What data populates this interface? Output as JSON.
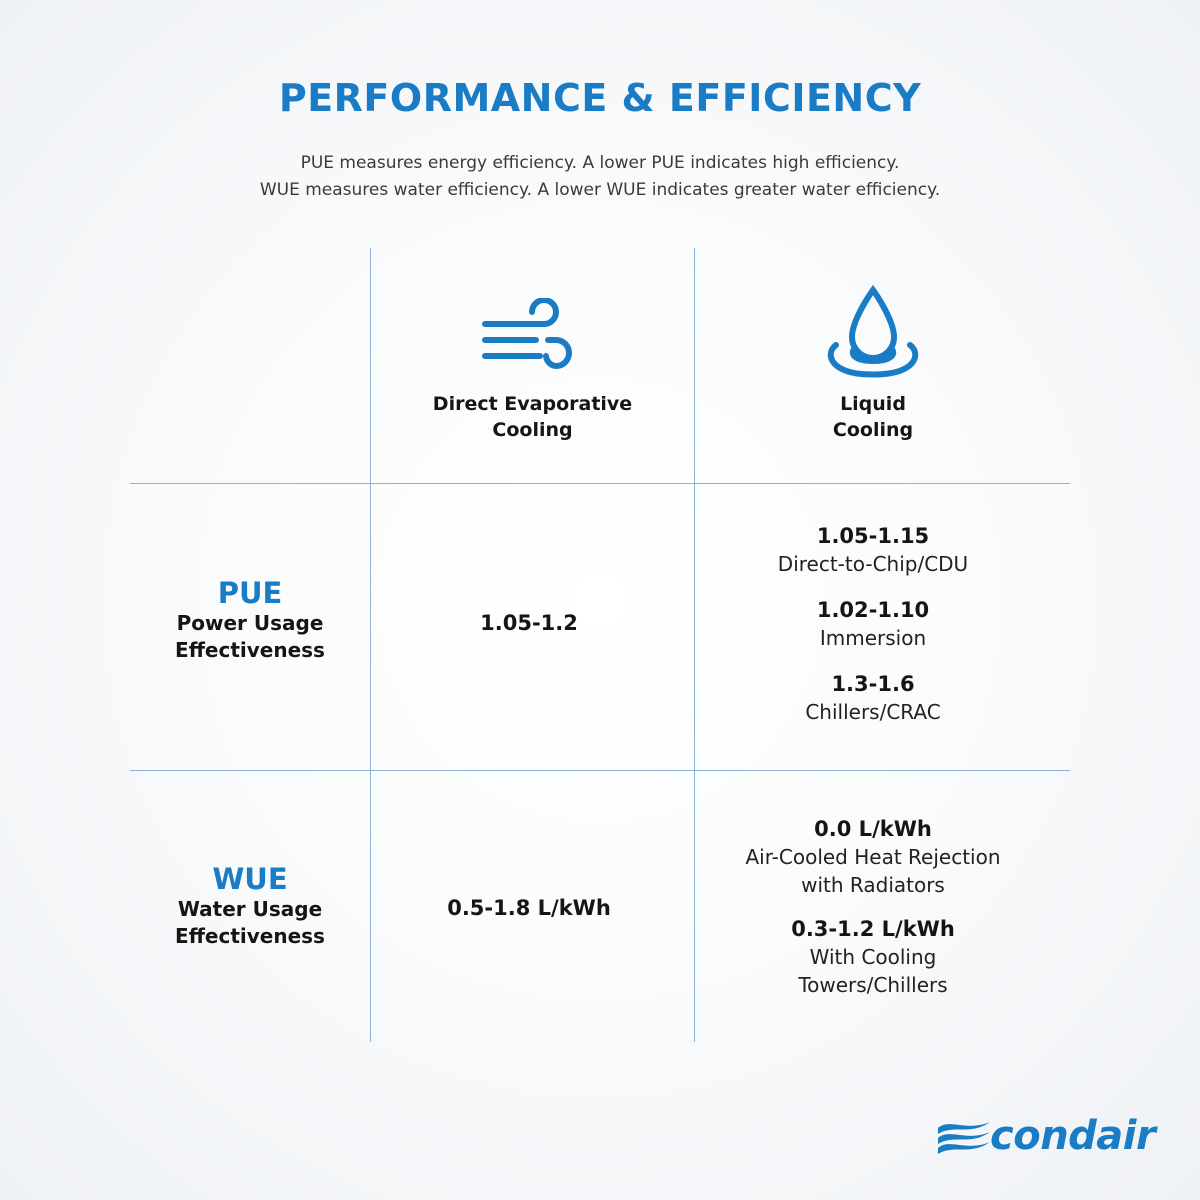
{
  "header": {
    "title": "PERFORMANCE & EFFICIENCY",
    "subtitle_lines": [
      "PUE measures energy efficiency. A lower PUE indicates high efficiency.",
      "WUE measures water efficiency. A lower WUE indicates greater water efficiency."
    ]
  },
  "columns": [
    {
      "icon": "wind-icon",
      "label_lines": [
        "Direct Evaporative",
        "Cooling"
      ]
    },
    {
      "icon": "water-drop-icon",
      "label_lines": [
        "Liquid",
        "Cooling"
      ]
    }
  ],
  "rows": [
    {
      "abbr": "PUE",
      "full_lines": [
        "Power Usage",
        "Effectiveness"
      ],
      "direct_evaporative": "1.05-1.2",
      "liquid": [
        {
          "value": "1.05-1.15",
          "label_lines": [
            "Direct-to-Chip/CDU"
          ]
        },
        {
          "value": "1.02-1.10",
          "label_lines": [
            "Immersion"
          ]
        },
        {
          "value": "1.3-1.6",
          "label_lines": [
            "Chillers/CRAC"
          ]
        }
      ]
    },
    {
      "abbr": "WUE",
      "full_lines": [
        "Water Usage",
        "Effectiveness"
      ],
      "direct_evaporative": "0.5-1.8 L/kWh",
      "liquid": [
        {
          "value": "0.0 L/kWh",
          "label_lines": [
            "Air-Cooled Heat Rejection",
            "with Radiators"
          ]
        },
        {
          "value": "0.3-1.2 L/kWh",
          "label_lines": [
            "With Cooling",
            "Towers/Chillers"
          ]
        }
      ]
    }
  ],
  "logo": {
    "text": "condair",
    "icon": "condair-wave-icon"
  },
  "colors": {
    "accent": "#1a7cc4",
    "grid_line": "#8cb4da",
    "text": "#151515"
  }
}
